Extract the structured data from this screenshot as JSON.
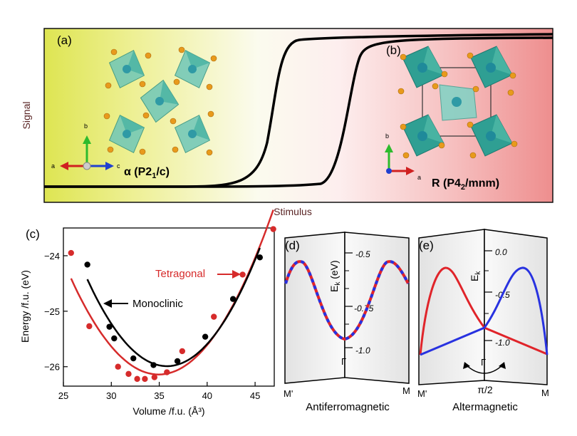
{
  "panel_a": {
    "label": "(a)",
    "phase_label_prefix": "α (P2",
    "phase_label_sub": "1",
    "phase_label_suffix": "/c)",
    "axis_a": "a",
    "axis_b": "b",
    "axis_c": "c"
  },
  "panel_b": {
    "label": "(b)",
    "phase_label_prefix": "R (P4",
    "phase_label_sub": "2",
    "phase_label_suffix": "/mnm)",
    "axis_a": "a",
    "axis_b": "b"
  },
  "top": {
    "ylabel": "Signal",
    "xlabel": "Stimulus"
  },
  "colors": {
    "tetragonal": "#d62b2b",
    "monoclinic": "#000000",
    "spin_up": "#e0242a",
    "spin_down": "#2832e0",
    "octahedron": "#3fb0a0",
    "atom": "#e89a1c"
  },
  "chart_data": {
    "type": "scatter",
    "panel_label": "(c)",
    "xlabel": "Volume /f.u. (Å³)",
    "ylabel": "Energy /f.u. (eV)",
    "xlim": [
      25,
      47
    ],
    "ylim": [
      -26.35,
      -23.5
    ],
    "xticks": [
      25,
      30,
      35,
      40,
      45
    ],
    "yticks": [
      -24,
      -25,
      -26
    ],
    "ytick_labels": [
      "−24",
      "−25",
      "−26"
    ],
    "series": [
      {
        "name": "Tetragonal",
        "color": "#d62b2b",
        "x": [
          25.8,
          27.7,
          30.7,
          31.8,
          32.7,
          33.5,
          34.5,
          35.8,
          37.4,
          40.7,
          43.7,
          46.9
        ],
        "y": [
          -23.95,
          -25.27,
          -26.0,
          -26.13,
          -26.22,
          -26.22,
          -26.19,
          -26.1,
          -25.72,
          -25.1,
          -24.34,
          -23.52
        ]
      },
      {
        "name": "Monoclinic",
        "color": "#000000",
        "x": [
          27.5,
          29.8,
          30.3,
          32.3,
          34.4,
          36.9,
          39.8,
          42.7,
          45.5
        ],
        "y": [
          -24.16,
          -25.28,
          -25.49,
          -25.85,
          -25.97,
          -25.9,
          -25.46,
          -24.78,
          -24.03
        ]
      }
    ]
  },
  "panel_d": {
    "label": "(d)",
    "ylabel_main": "E",
    "ylabel_sub": "k",
    "ylabel_unit": " (eV)",
    "ticks": [
      "-0.5",
      "-0.75",
      "-1.0"
    ],
    "left_k": "M'",
    "center_k": "Γ",
    "right_k": "M",
    "caption": "Antiferromagnetic"
  },
  "panel_e": {
    "label": "(e)",
    "ylabel_main": "E",
    "ylabel_sub": "k",
    "ticks": [
      "0.0",
      "-0.5",
      "-1.0"
    ],
    "left_k": "M'",
    "center_k": "Γ",
    "right_k": "M",
    "angle": "π/2",
    "caption": "Altermagnetic"
  }
}
